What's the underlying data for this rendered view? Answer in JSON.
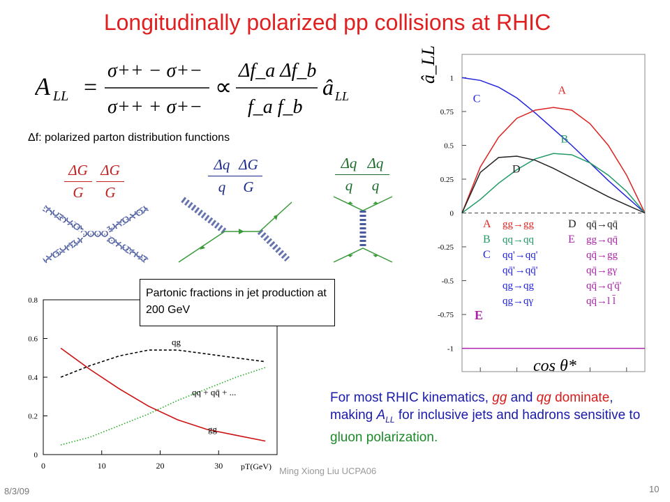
{
  "title": "Longitudinally polarized pp collisions at RHIC",
  "equation": {
    "lhs": "A",
    "lhs_sub": "LL",
    "num1": "σ++ − σ+−",
    "den1": "σ++ + σ+−",
    "num2": "Δf_a Δf_b",
    "den2": "f_a f_b",
    "rhs": "â",
    "rhs_sub": "LL"
  },
  "pdf_note": "Δf: polarized parton distribution functions",
  "diagrams": {
    "gg": {
      "num1": "ΔG",
      "den1": "G",
      "num2": "ΔG",
      "den2": "G"
    },
    "qg": {
      "num1": "Δq",
      "den1": "q",
      "num2": "ΔG",
      "den2": "G"
    },
    "qq": {
      "num1": "Δq",
      "den1": "q",
      "num2": "Δq",
      "den2": "q"
    }
  },
  "jet_box": "Partonic fractions in jet production at 200 GeV",
  "summary": {
    "p1": "For most RHIC kinematics, ",
    "gg": "gg",
    "and": " and ",
    "qg": "qg",
    "dom": "dominate",
    "p2": ", making ",
    "A": "A",
    "Asub": "LL",
    "p3": " for inclusive jets and hadrons sensitive to ",
    "gluon": "gluon polarization."
  },
  "footer": {
    "author": "Ming Xiong Liu  UCPA06",
    "date": "8/3/09",
    "page": "10"
  },
  "chart_data": [
    {
      "type": "line",
      "title": "",
      "xlabel": "pT(GeV)",
      "ylabel": "",
      "xlim": [
        0,
        40
      ],
      "ylim": [
        0,
        0.8
      ],
      "x_ticks": [
        "0",
        "10",
        "20",
        "30"
      ],
      "y_ticks": [
        "0",
        "0.2",
        "0.4",
        "0.6",
        "0.8"
      ],
      "series": [
        {
          "name": "qg",
          "color": "#000000",
          "style": "dashed",
          "x": [
            3,
            8,
            13,
            18,
            23,
            28,
            33,
            38
          ],
          "y": [
            0.4,
            0.46,
            0.51,
            0.54,
            0.54,
            0.52,
            0.5,
            0.48
          ]
        },
        {
          "name": "qq + qq̄ + ...",
          "color": "#22aa22",
          "style": "dotted",
          "x": [
            3,
            8,
            13,
            18,
            23,
            28,
            33,
            38
          ],
          "y": [
            0.05,
            0.09,
            0.15,
            0.21,
            0.28,
            0.34,
            0.4,
            0.45
          ]
        },
        {
          "name": "gg",
          "color": "#cc1111",
          "style": "solid",
          "x": [
            3,
            8,
            13,
            18,
            23,
            28,
            33,
            38
          ],
          "y": [
            0.55,
            0.44,
            0.34,
            0.25,
            0.18,
            0.13,
            0.1,
            0.07
          ]
        }
      ]
    },
    {
      "type": "line",
      "title": "",
      "xlabel": "cos θ*",
      "ylabel": "â_LL",
      "xlim": [
        -1,
        1
      ],
      "ylim": [
        -1.1,
        1.1
      ],
      "x_ticks": [
        "-0.8",
        "-0.4",
        "0",
        "0.4",
        "0.8"
      ],
      "y_ticks": [
        "1",
        "0.75",
        "0.5",
        "0.25",
        "0",
        "-0.25",
        "-0.5",
        "-0.75",
        "-1"
      ],
      "series": [
        {
          "name": "C",
          "color": "#2222dd",
          "x": [
            -1,
            -0.8,
            -0.6,
            -0.4,
            -0.2,
            0,
            0.2,
            0.4,
            0.6,
            0.8,
            1
          ],
          "y": [
            1,
            0.98,
            0.93,
            0.85,
            0.74,
            0.62,
            0.5,
            0.37,
            0.24,
            0.12,
            0
          ]
        },
        {
          "name": "A",
          "color": "#dd2222",
          "x": [
            -1,
            -0.8,
            -0.6,
            -0.4,
            -0.2,
            0,
            0.2,
            0.4,
            0.6,
            0.8,
            1
          ],
          "y": [
            0,
            0.34,
            0.56,
            0.7,
            0.76,
            0.78,
            0.76,
            0.66,
            0.5,
            0.28,
            0
          ]
        },
        {
          "name": "B",
          "color": "#229966",
          "x": [
            -1,
            -0.8,
            -0.6,
            -0.4,
            -0.2,
            0,
            0.2,
            0.4,
            0.6,
            0.8,
            1
          ],
          "y": [
            0,
            0.1,
            0.22,
            0.32,
            0.4,
            0.44,
            0.43,
            0.37,
            0.28,
            0.16,
            0
          ]
        },
        {
          "name": "D",
          "color": "#222222",
          "x": [
            -1,
            -0.8,
            -0.6,
            -0.4,
            -0.2,
            0,
            0.2,
            0.4,
            0.6,
            0.8,
            1
          ],
          "y": [
            0,
            0.3,
            0.41,
            0.42,
            0.39,
            0.33,
            0.26,
            0.19,
            0.12,
            0.06,
            0
          ]
        },
        {
          "name": "E",
          "color": "#aa22aa",
          "x": [
            -1,
            1
          ],
          "y": [
            -1,
            -1
          ]
        }
      ],
      "legend_left": [
        {
          "label": "A",
          "color": "#dd2222",
          "processes": [
            "gg→gg"
          ]
        },
        {
          "label": "B",
          "color": "#229966",
          "processes": [
            "qq→qq"
          ]
        },
        {
          "label": "C",
          "color": "#2222dd",
          "processes": [
            "qq'→qq'",
            "qq̄'→qq̄'",
            "qg→qg",
            "qg→qγ"
          ]
        }
      ],
      "legend_right": [
        {
          "label": "D",
          "color": "#222222",
          "processes": [
            "qq̄→qq̄"
          ]
        },
        {
          "label": "E",
          "color": "#aa22aa",
          "processes": [
            "gg→qq̄",
            "qq̄→gg",
            "qq̄→gγ",
            "qq̄→q'q̄'",
            "qq̄→l l̄"
          ]
        }
      ],
      "bottom_label": "E"
    }
  ]
}
